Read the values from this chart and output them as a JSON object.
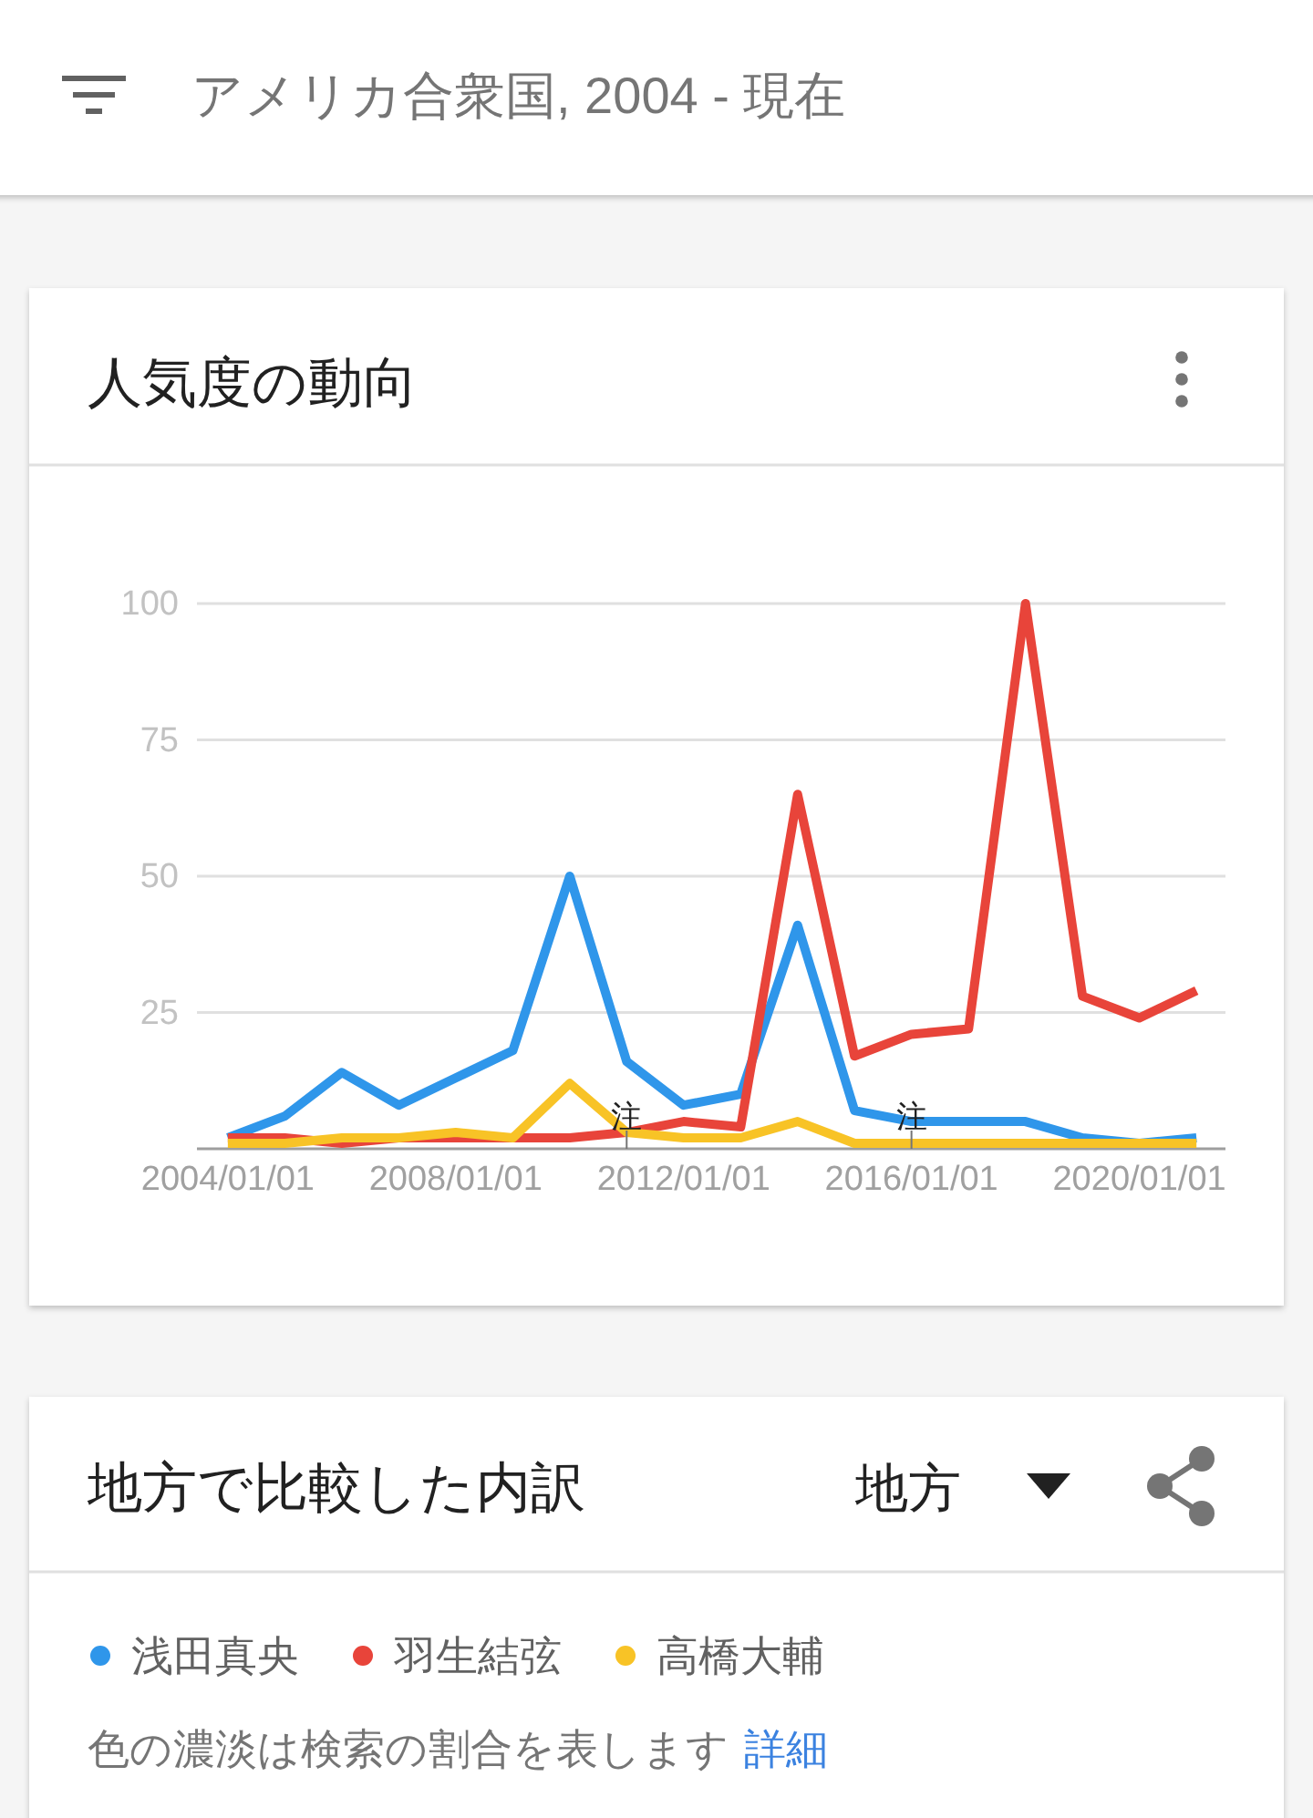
{
  "chart_data": {
    "type": "line",
    "title": "人気度の動向",
    "subtitle": "アメリカ合衆国, 2004 - 現在",
    "x": [
      "2004",
      "2005",
      "2006",
      "2007",
      "2008",
      "2009",
      "2010",
      "2011",
      "2012",
      "2013",
      "2014",
      "2015",
      "2016",
      "2017",
      "2018",
      "2019",
      "2020",
      "2021"
    ],
    "xlim": [
      "2003-06-17",
      "2021-07-06"
    ],
    "xticks": [
      {
        "value": "2004-01-01",
        "label": "2004/01/01"
      },
      {
        "value": "2008-01-01",
        "label": "2008/01/01"
      },
      {
        "value": "2012-01-01",
        "label": "2012/01/01"
      },
      {
        "value": "2016-01-01",
        "label": "2016/01/01"
      },
      {
        "value": "2020-01-01",
        "label": "2020/01/01"
      }
    ],
    "ylim": [
      0,
      100
    ],
    "yticks": [
      25,
      50,
      75,
      100
    ],
    "grid": "y",
    "legend": "bottom",
    "series": [
      {
        "name": "浅田真央",
        "color": "#2f96ea",
        "values": [
          2,
          6,
          14,
          8,
          13,
          18,
          50,
          16,
          8,
          10,
          41,
          7,
          5,
          5,
          5,
          2,
          1,
          2
        ]
      },
      {
        "name": "羽生結弦",
        "color": "#e8443a",
        "values": [
          2,
          2,
          1,
          2,
          2,
          2,
          2,
          3,
          5,
          4,
          65,
          17,
          21,
          22,
          100,
          28,
          24,
          29
        ]
      },
      {
        "name": "高橋大輔",
        "color": "#f8c326",
        "values": [
          1,
          1,
          2,
          2,
          3,
          2,
          12,
          3,
          2,
          2,
          5,
          1,
          1,
          1,
          1,
          1,
          1,
          1
        ]
      }
    ],
    "annotations": [
      {
        "text": "注",
        "x": "2011-01-01"
      },
      {
        "text": "注",
        "x": "2016-01-01"
      },
      "地方で比較した内訳",
      "地方",
      "色の濃淡は検索の割合を表します",
      "詳細"
    ]
  }
}
